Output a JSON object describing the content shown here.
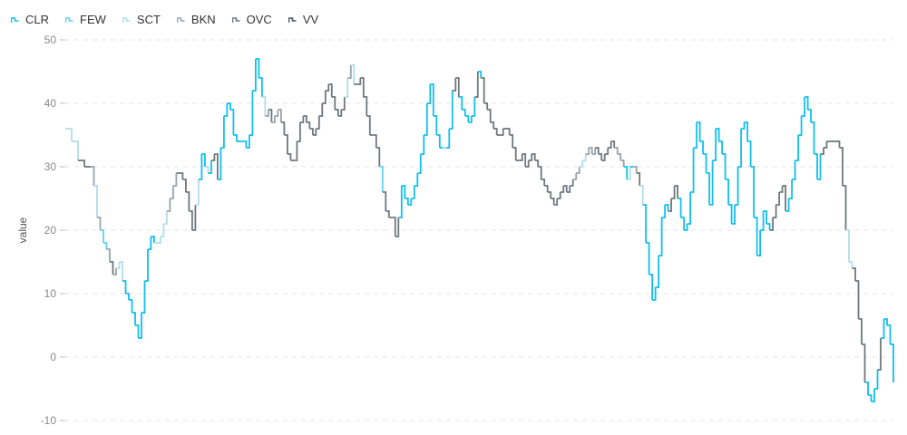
{
  "chart_data": {
    "type": "line",
    "title": "",
    "xlabel": "",
    "ylabel": "value",
    "ylim": [
      -10,
      50
    ],
    "yticks": [
      "50",
      "40",
      "30",
      "20",
      "10",
      "0",
      "-10"
    ],
    "grid": "horizontal dashed",
    "legend": "top-left",
    "line_style": "step",
    "series": [
      {
        "name": "CLR",
        "color": "#11bff0"
      },
      {
        "name": "FEW",
        "color": "#5fd2f5"
      },
      {
        "name": "SCT",
        "color": "#b0dde9"
      },
      {
        "name": "BKN",
        "color": "#9aa3a8"
      },
      {
        "name": "OVC",
        "color": "#6f787c"
      },
      {
        "name": "VV",
        "color": "#4e5558"
      }
    ],
    "points": [
      [
        0,
        36,
        "SCT"
      ],
      [
        2,
        34,
        "SCT"
      ],
      [
        4,
        31,
        "OVC"
      ],
      [
        6,
        30,
        "OVC"
      ],
      [
        8,
        30,
        "BKN"
      ],
      [
        9,
        27,
        "SCT"
      ],
      [
        10,
        22,
        "BKN"
      ],
      [
        11,
        20,
        "FEW"
      ],
      [
        12,
        18,
        "FEW"
      ],
      [
        13,
        17,
        "BKN"
      ],
      [
        14,
        15,
        "OVC"
      ],
      [
        15,
        13,
        "BKN"
      ],
      [
        16,
        14,
        "SCT"
      ],
      [
        17,
        15,
        "SCT"
      ],
      [
        18,
        12,
        "CLR"
      ],
      [
        19,
        10,
        "CLR"
      ],
      [
        20,
        9,
        "CLR"
      ],
      [
        21,
        7,
        "CLR"
      ],
      [
        22,
        5,
        "CLR"
      ],
      [
        23,
        3,
        "CLR"
      ],
      [
        24,
        7,
        "CLR"
      ],
      [
        25,
        12,
        "CLR"
      ],
      [
        26,
        17,
        "CLR"
      ],
      [
        27,
        19,
        "CLR"
      ],
      [
        28,
        18,
        "SCT"
      ],
      [
        30,
        19,
        "SCT"
      ],
      [
        31,
        21,
        "SCT"
      ],
      [
        32,
        23,
        "BKN"
      ],
      [
        33,
        25,
        "BKN"
      ],
      [
        34,
        27,
        "BKN"
      ],
      [
        35,
        29,
        "OVC"
      ],
      [
        37,
        28,
        "OVC"
      ],
      [
        38,
        26,
        "OVC"
      ],
      [
        39,
        23,
        "OVC"
      ],
      [
        40,
        20,
        "OVC"
      ],
      [
        41,
        24,
        "SCT"
      ],
      [
        42,
        28,
        "CLR"
      ],
      [
        43,
        32,
        "CLR"
      ],
      [
        44,
        30,
        "SCT"
      ],
      [
        45,
        29,
        "CLR"
      ],
      [
        46,
        31,
        "OVC"
      ],
      [
        47,
        32,
        "OVC"
      ],
      [
        48,
        28,
        "CLR"
      ],
      [
        49,
        33,
        "CLR"
      ],
      [
        50,
        38,
        "CLR"
      ],
      [
        51,
        40,
        "CLR"
      ],
      [
        52,
        39,
        "CLR"
      ],
      [
        53,
        35,
        "CLR"
      ],
      [
        54,
        34,
        "CLR"
      ],
      [
        56,
        34,
        "CLR"
      ],
      [
        57,
        33,
        "CLR"
      ],
      [
        58,
        35,
        "CLR"
      ],
      [
        59,
        42,
        "CLR"
      ],
      [
        60,
        47,
        "CLR"
      ],
      [
        61,
        44,
        "CLR"
      ],
      [
        62,
        41,
        "SCT"
      ],
      [
        63,
        38,
        "BKN"
      ],
      [
        64,
        39,
        "OVC"
      ],
      [
        65,
        37,
        "BKN"
      ],
      [
        66,
        38,
        "BKN"
      ],
      [
        67,
        39,
        "BKN"
      ],
      [
        68,
        37,
        "OVC"
      ],
      [
        69,
        35,
        "OVC"
      ],
      [
        70,
        32,
        "OVC"
      ],
      [
        71,
        31,
        "OVC"
      ],
      [
        72,
        31,
        "OVC"
      ],
      [
        73,
        34,
        "OVC"
      ],
      [
        74,
        37,
        "OVC"
      ],
      [
        75,
        38,
        "OVC"
      ],
      [
        76,
        37,
        "OVC"
      ],
      [
        77,
        36,
        "OVC"
      ],
      [
        78,
        35,
        "OVC"
      ],
      [
        79,
        36,
        "OVC"
      ],
      [
        80,
        38,
        "OVC"
      ],
      [
        81,
        40,
        "OVC"
      ],
      [
        82,
        42,
        "OVC"
      ],
      [
        83,
        43,
        "OVC"
      ],
      [
        84,
        41,
        "OVC"
      ],
      [
        85,
        39,
        "OVC"
      ],
      [
        86,
        38,
        "OVC"
      ],
      [
        87,
        39,
        "OVC"
      ],
      [
        88,
        41,
        "SCT"
      ],
      [
        89,
        44,
        "BKN"
      ],
      [
        90,
        46,
        "SCT"
      ],
      [
        91,
        43,
        "OVC"
      ],
      [
        92,
        43,
        "OVC"
      ],
      [
        93,
        44,
        "OVC"
      ],
      [
        94,
        41,
        "OVC"
      ],
      [
        95,
        38,
        "OVC"
      ],
      [
        96,
        35,
        "OVC"
      ],
      [
        97,
        35,
        "OVC"
      ],
      [
        98,
        33,
        "OVC"
      ],
      [
        99,
        30,
        "FEW"
      ],
      [
        100,
        26,
        "OVC"
      ],
      [
        101,
        23,
        "OVC"
      ],
      [
        102,
        22,
        "OVC"
      ],
      [
        103,
        22,
        "OVC"
      ],
      [
        104,
        19,
        "OVC"
      ],
      [
        105,
        22,
        "CLR"
      ],
      [
        106,
        27,
        "CLR"
      ],
      [
        107,
        25,
        "CLR"
      ],
      [
        108,
        24,
        "CLR"
      ],
      [
        109,
        25,
        "CLR"
      ],
      [
        110,
        27,
        "CLR"
      ],
      [
        111,
        29,
        "CLR"
      ],
      [
        112,
        32,
        "CLR"
      ],
      [
        113,
        35,
        "CLR"
      ],
      [
        114,
        40,
        "CLR"
      ],
      [
        115,
        43,
        "CLR"
      ],
      [
        116,
        38,
        "CLR"
      ],
      [
        117,
        35,
        "CLR"
      ],
      [
        118,
        33,
        "CLR"
      ],
      [
        119,
        33,
        "SCT"
      ],
      [
        120,
        33,
        "CLR"
      ],
      [
        121,
        36,
        "CLR"
      ],
      [
        122,
        42,
        "OVC"
      ],
      [
        123,
        44,
        "OVC"
      ],
      [
        124,
        41,
        "CLR"
      ],
      [
        125,
        39,
        "CLR"
      ],
      [
        126,
        38,
        "CLR"
      ],
      [
        127,
        37,
        "CLR"
      ],
      [
        128,
        38,
        "CLR"
      ],
      [
        129,
        41,
        "OVC"
      ],
      [
        130,
        45,
        "CLR"
      ],
      [
        131,
        44,
        "OVC"
      ],
      [
        132,
        40,
        "OVC"
      ],
      [
        133,
        39,
        "OVC"
      ],
      [
        134,
        37,
        "OVC"
      ],
      [
        135,
        36,
        "OVC"
      ],
      [
        136,
        35,
        "OVC"
      ],
      [
        137,
        35,
        "OVC"
      ],
      [
        138,
        36,
        "OVC"
      ],
      [
        140,
        35,
        "OVC"
      ],
      [
        141,
        33,
        "OVC"
      ],
      [
        142,
        31,
        "OVC"
      ],
      [
        143,
        31,
        "OVC"
      ],
      [
        144,
        32,
        "OVC"
      ],
      [
        145,
        30,
        "OVC"
      ],
      [
        146,
        31,
        "OVC"
      ],
      [
        147,
        32,
        "OVC"
      ],
      [
        148,
        31,
        "OVC"
      ],
      [
        149,
        30,
        "OVC"
      ],
      [
        150,
        28,
        "OVC"
      ],
      [
        151,
        27,
        "OVC"
      ],
      [
        152,
        26,
        "OVC"
      ],
      [
        153,
        25,
        "OVC"
      ],
      [
        154,
        24,
        "OVC"
      ],
      [
        155,
        25,
        "OVC"
      ],
      [
        156,
        26,
        "OVC"
      ],
      [
        157,
        27,
        "OVC"
      ],
      [
        158,
        26,
        "OVC"
      ],
      [
        159,
        27,
        "OVC"
      ],
      [
        160,
        28,
        "BKN"
      ],
      [
        161,
        29,
        "BKN"
      ],
      [
        162,
        30,
        "SCT"
      ],
      [
        163,
        31,
        "SCT"
      ],
      [
        164,
        32,
        "BKN"
      ],
      [
        165,
        33,
        "BKN"
      ],
      [
        166,
        32,
        "BKN"
      ],
      [
        167,
        33,
        "OVC"
      ],
      [
        168,
        32,
        "OVC"
      ],
      [
        169,
        31,
        "OVC"
      ],
      [
        170,
        32,
        "OVC"
      ],
      [
        171,
        33,
        "OVC"
      ],
      [
        172,
        34,
        "OVC"
      ],
      [
        173,
        33,
        "BKN"
      ],
      [
        174,
        32,
        "BKN"
      ],
      [
        175,
        31,
        "BKN"
      ],
      [
        176,
        30,
        "CLR"
      ],
      [
        177,
        28,
        "SCT"
      ],
      [
        178,
        30,
        "CLR"
      ],
      [
        179,
        30,
        "BKN"
      ],
      [
        180,
        29,
        "OVC"
      ],
      [
        181,
        27,
        "SCT"
      ],
      [
        182,
        24,
        "CLR"
      ],
      [
        183,
        18,
        "CLR"
      ],
      [
        184,
        13,
        "CLR"
      ],
      [
        185,
        9,
        "CLR"
      ],
      [
        186,
        11,
        "CLR"
      ],
      [
        187,
        16,
        "CLR"
      ],
      [
        188,
        22,
        "CLR"
      ],
      [
        189,
        24,
        "CLR"
      ],
      [
        190,
        23,
        "OVC"
      ],
      [
        191,
        25,
        "OVC"
      ],
      [
        192,
        27,
        "OVC"
      ],
      [
        193,
        25,
        "CLR"
      ],
      [
        194,
        22,
        "CLR"
      ],
      [
        195,
        20,
        "CLR"
      ],
      [
        196,
        21,
        "CLR"
      ],
      [
        197,
        26,
        "CLR"
      ],
      [
        198,
        33,
        "CLR"
      ],
      [
        199,
        37,
        "CLR"
      ],
      [
        200,
        34,
        "CLR"
      ],
      [
        201,
        32,
        "CLR"
      ],
      [
        202,
        29,
        "CLR"
      ],
      [
        203,
        24,
        "CLR"
      ],
      [
        204,
        31,
        "CLR"
      ],
      [
        205,
        36,
        "CLR"
      ],
      [
        206,
        34,
        "CLR"
      ],
      [
        207,
        32,
        "CLR"
      ],
      [
        208,
        28,
        "CLR"
      ],
      [
        209,
        24,
        "CLR"
      ],
      [
        210,
        21,
        "CLR"
      ],
      [
        211,
        24,
        "CLR"
      ],
      [
        212,
        30,
        "CLR"
      ],
      [
        213,
        36,
        "CLR"
      ],
      [
        214,
        37,
        "CLR"
      ],
      [
        215,
        34,
        "CLR"
      ],
      [
        216,
        30,
        "CLR"
      ],
      [
        217,
        22,
        "CLR"
      ],
      [
        218,
        16,
        "CLR"
      ],
      [
        219,
        20,
        "CLR"
      ],
      [
        220,
        23,
        "CLR"
      ],
      [
        221,
        21,
        "CLR"
      ],
      [
        222,
        20,
        "OVC"
      ],
      [
        223,
        22,
        "OVC"
      ],
      [
        224,
        24,
        "OVC"
      ],
      [
        225,
        26,
        "OVC"
      ],
      [
        226,
        27,
        "OVC"
      ],
      [
        227,
        23,
        "CLR"
      ],
      [
        228,
        25,
        "CLR"
      ],
      [
        229,
        28,
        "CLR"
      ],
      [
        230,
        31,
        "CLR"
      ],
      [
        231,
        35,
        "CLR"
      ],
      [
        232,
        38,
        "CLR"
      ],
      [
        233,
        41,
        "CLR"
      ],
      [
        234,
        39,
        "CLR"
      ],
      [
        235,
        37,
        "CLR"
      ],
      [
        236,
        32,
        "CLR"
      ],
      [
        237,
        28,
        "CLR"
      ],
      [
        238,
        32,
        "OVC"
      ],
      [
        239,
        33,
        "OVC"
      ],
      [
        240,
        34,
        "OVC"
      ],
      [
        242,
        34,
        "OVC"
      ],
      [
        244,
        33,
        "OVC"
      ],
      [
        245,
        27,
        "OVC"
      ],
      [
        246,
        20,
        "SCT"
      ],
      [
        247,
        15,
        "SCT"
      ],
      [
        248,
        14,
        "OVC"
      ],
      [
        249,
        12,
        "OVC"
      ],
      [
        250,
        6,
        "OVC"
      ],
      [
        251,
        2,
        "OVC"
      ],
      [
        252,
        -4,
        "CLR"
      ],
      [
        253,
        -6,
        "CLR"
      ],
      [
        254,
        -7,
        "CLR"
      ],
      [
        255,
        -5,
        "CLR"
      ],
      [
        256,
        -2,
        "OVC"
      ],
      [
        257,
        3,
        "CLR"
      ],
      [
        258,
        6,
        "CLR"
      ],
      [
        259,
        5,
        "CLR"
      ],
      [
        260,
        2,
        "CLR"
      ],
      [
        261,
        -4,
        "CLR"
      ]
    ]
  }
}
